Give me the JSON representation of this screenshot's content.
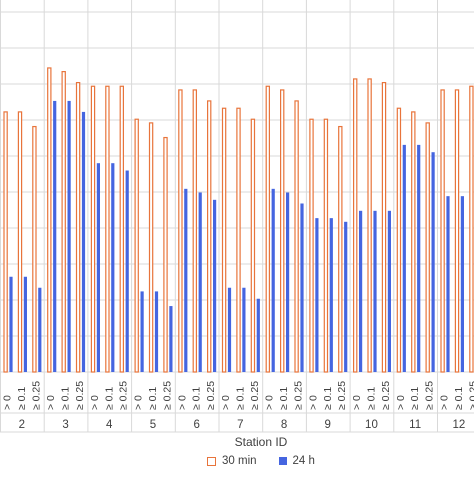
{
  "chart_data": {
    "type": "bar",
    "xlabel": "Station ID",
    "ylabel": "",
    "ylim": [
      0,
      1
    ],
    "grid": true,
    "legend_position": "bottom",
    "thresholds": [
      "> 0",
      "≥ 0.1",
      "≥ 0.25"
    ],
    "stations": [
      "2",
      "3",
      "4",
      "5",
      "6",
      "7",
      "8",
      "9",
      "10",
      "11",
      "12"
    ],
    "series": [
      {
        "name": "30 min",
        "style": "outline",
        "color": "#e8743b",
        "values": [
          [
            0.71,
            0.71,
            0.67
          ],
          [
            0.83,
            0.82,
            0.79
          ],
          [
            0.78,
            0.78,
            0.78
          ],
          [
            0.69,
            0.68,
            0.64
          ],
          [
            0.77,
            0.77,
            0.74
          ],
          [
            0.72,
            0.72,
            0.69
          ],
          [
            0.78,
            0.77,
            0.74
          ],
          [
            0.69,
            0.69,
            0.67
          ],
          [
            0.8,
            0.8,
            0.79
          ],
          [
            0.72,
            0.71,
            0.68
          ],
          [
            0.77,
            0.77,
            0.78
          ]
        ]
      },
      {
        "name": "24 h",
        "style": "filled",
        "color": "#4565e0",
        "values": [
          [
            0.26,
            0.26,
            0.23
          ],
          [
            0.74,
            0.74,
            0.71
          ],
          [
            0.57,
            0.57,
            0.55
          ],
          [
            0.22,
            0.22,
            0.18
          ],
          [
            0.5,
            0.49,
            0.47
          ],
          [
            0.23,
            0.23,
            0.2
          ],
          [
            0.5,
            0.49,
            0.46
          ],
          [
            0.42,
            0.42,
            0.41
          ],
          [
            0.44,
            0.44,
            0.44
          ],
          [
            0.62,
            0.62,
            0.6
          ],
          [
            0.48,
            0.48,
            0.48
          ]
        ]
      }
    ]
  },
  "legend": {
    "item_30min": "30 min",
    "item_24h": "24 h"
  }
}
